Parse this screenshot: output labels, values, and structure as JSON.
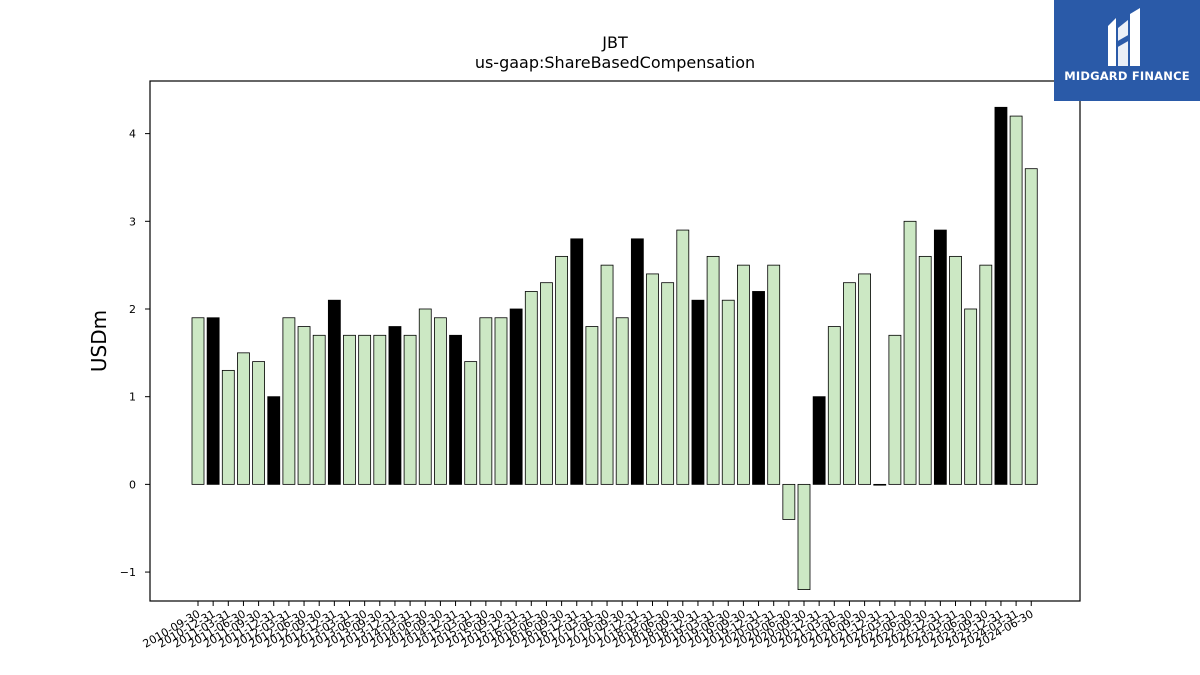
{
  "chart_data": {
    "type": "bar",
    "title": "JBT",
    "subtitle": "us-gaap:ShareBasedCompensation",
    "xlabel": "",
    "ylabel": "USDm",
    "ylim": [
      -1.33,
      4.6
    ],
    "yticks": [
      -1,
      0,
      1,
      2,
      3,
      4
    ],
    "ytick_labels": [
      "−1",
      "0",
      "1",
      "2",
      "3",
      "4"
    ],
    "grid": false,
    "colors": {
      "quarter": "#cce8c4",
      "year_end": "#000000",
      "edge": "#000000"
    },
    "categories": [
      "2010-09-30",
      "2010-12-31",
      "2011-03-31",
      "2011-06-30",
      "2011-09-30",
      "2011-12-31",
      "2012-03-31",
      "2012-06-30",
      "2012-09-30",
      "2012-12-31",
      "2013-03-31",
      "2013-06-30",
      "2013-09-30",
      "2013-12-31",
      "2014-03-31",
      "2014-06-30",
      "2014-09-30",
      "2014-12-31",
      "2015-03-31",
      "2015-06-30",
      "2015-09-30",
      "2015-12-31",
      "2016-03-31",
      "2016-06-30",
      "2016-09-30",
      "2016-12-31",
      "2017-03-31",
      "2017-06-30",
      "2017-09-30",
      "2017-12-31",
      "2018-03-31",
      "2018-06-30",
      "2018-09-30",
      "2018-12-31",
      "2019-03-31",
      "2019-06-30",
      "2019-09-30",
      "2019-12-31",
      "2020-03-31",
      "2020-06-30",
      "2020-09-30",
      "2020-12-31",
      "2021-03-31",
      "2021-06-30",
      "2021-09-30",
      "2021-12-31",
      "2022-03-31",
      "2022-06-30",
      "2022-09-30",
      "2022-12-31",
      "2023-03-31",
      "2023-06-30",
      "2023-09-30",
      "2023-12-31",
      "2024-03-31",
      "2024-06-30"
    ],
    "values": [
      1.9,
      1.9,
      1.3,
      1.5,
      1.4,
      1.0,
      1.9,
      1.8,
      1.7,
      2.1,
      1.7,
      1.7,
      1.7,
      1.8,
      1.7,
      2.0,
      1.9,
      1.7,
      1.4,
      1.9,
      1.9,
      2.0,
      2.2,
      2.3,
      2.6,
      2.8,
      1.8,
      2.5,
      1.9,
      2.8,
      2.4,
      2.3,
      2.9,
      2.1,
      2.6,
      2.1,
      2.5,
      2.2,
      2.5,
      -0.4,
      -1.2,
      1.0,
      1.8,
      2.3,
      2.4,
      0.0,
      1.7,
      3.0,
      2.6,
      2.9,
      2.6,
      2.0,
      2.5,
      4.3,
      4.2,
      3.6
    ],
    "highlight": [
      false,
      true,
      false,
      false,
      false,
      true,
      false,
      false,
      false,
      true,
      false,
      false,
      false,
      true,
      false,
      false,
      false,
      true,
      false,
      false,
      false,
      true,
      false,
      false,
      false,
      true,
      false,
      false,
      false,
      true,
      false,
      false,
      false,
      true,
      false,
      false,
      false,
      true,
      false,
      false,
      false,
      true,
      false,
      false,
      false,
      true,
      false,
      false,
      false,
      true,
      false,
      false,
      false,
      true,
      false,
      false
    ]
  },
  "logo": {
    "text": "MIDGARD FINANCE",
    "color": "#2a5aa8"
  }
}
